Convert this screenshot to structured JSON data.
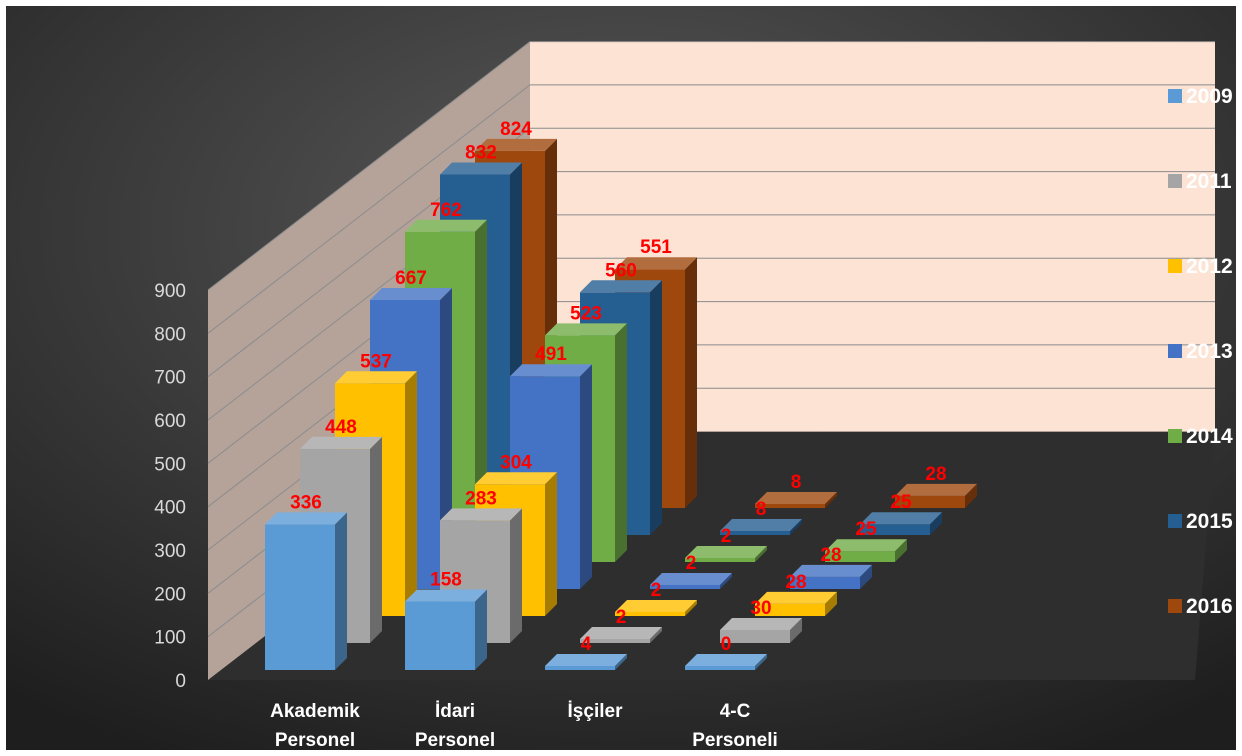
{
  "chart_data": {
    "type": "bar",
    "subtype": "3d-column",
    "categories": [
      "Akademik Personel",
      "İdari Personel",
      "İşçiler",
      "4-C Personeli"
    ],
    "series": [
      {
        "name": "2009",
        "values": [
          336,
          158,
          4,
          0
        ],
        "color": "#5b9bd5"
      },
      {
        "name": "2011",
        "values": [
          448,
          283,
          2,
          30
        ],
        "color": "#a5a5a5"
      },
      {
        "name": "2012",
        "values": [
          537,
          304,
          2,
          28
        ],
        "color": "#ffc000"
      },
      {
        "name": "2013",
        "values": [
          667,
          491,
          2,
          28
        ],
        "color": "#4472c4"
      },
      {
        "name": "2014",
        "values": [
          762,
          523,
          2,
          25
        ],
        "color": "#70ad47"
      },
      {
        "name": "2015",
        "values": [
          832,
          560,
          8,
          25
        ],
        "color": "#255e91"
      },
      {
        "name": "2016",
        "values": [
          824,
          551,
          8,
          28
        ],
        "color": "#9e480e"
      }
    ],
    "ylim": [
      0,
      900
    ],
    "yticks": [
      "0",
      "100",
      "200",
      "300",
      "400",
      "500",
      "600",
      "700",
      "800",
      "900"
    ],
    "grid": true,
    "legend_position": "right",
    "label_color": "#ff0000",
    "back_wall_color": "#fde3d4",
    "side_wall_color": "#b5a39a",
    "background": "#3a3a3a"
  }
}
